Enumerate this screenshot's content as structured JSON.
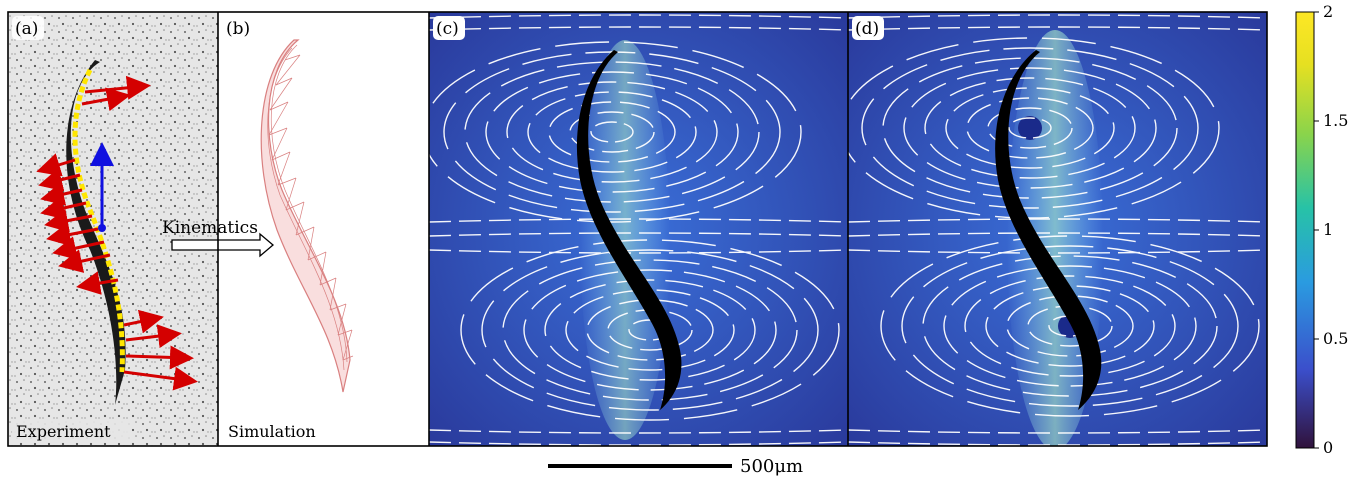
{
  "panels": [
    {
      "label": "(a)",
      "caption": "Experiment"
    },
    {
      "label": "(b)",
      "caption": "Simulation"
    },
    {
      "label": "(c)",
      "caption": ""
    },
    {
      "label": "(d)",
      "caption": ""
    }
  ],
  "arrow_label": "Kinematics",
  "scale_bar_label": "500μm",
  "colorbar": {
    "ticks": [
      "0",
      "0.5",
      "1",
      "1.5",
      "2"
    ],
    "colormap": [
      "#30123b",
      "#3b4fcb",
      "#2a9be0",
      "#27c2a7",
      "#8ad44b",
      "#e6e021",
      "#fde725"
    ]
  },
  "colors": {
    "force_arrows": "#d40000",
    "body_vector": "#1010e0",
    "mesh": "#d98080",
    "streamlines": "#ffffff",
    "field_low": "#2c3ca0",
    "field_high": "#f2e04a"
  }
}
